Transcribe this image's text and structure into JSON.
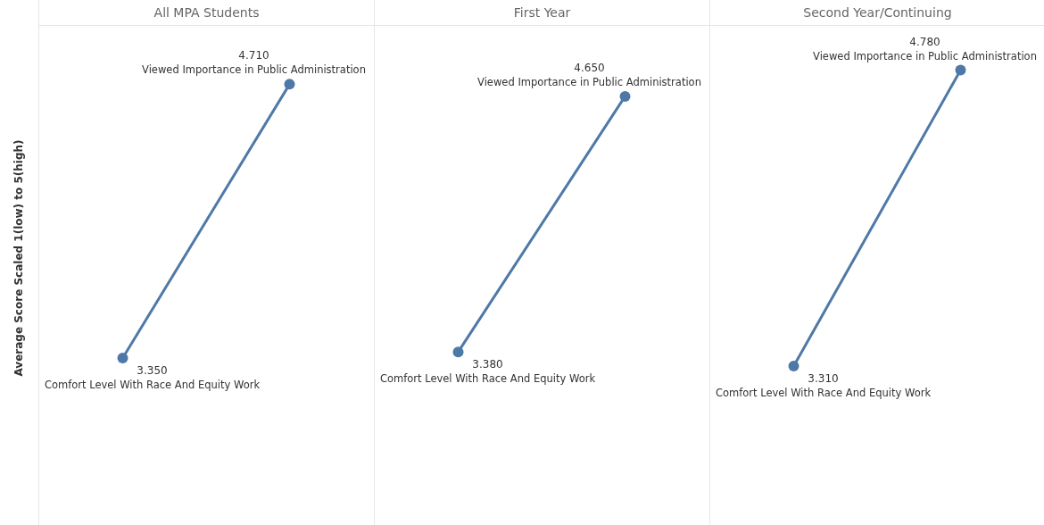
{
  "chart_data": [
    {
      "type": "line",
      "title": "All MPA Students",
      "ylabel": "Average Score Scaled 1(low) to 5(high)",
      "categories": [
        null,
        null
      ],
      "values": [
        3.35,
        4.71
      ],
      "value_labels": [
        "3.350",
        "4.710"
      ],
      "color": "#4e79a7",
      "marker": "circle",
      "ylim": [
        2.52,
        5
      ],
      "annotations": [
        "Comfort Level With Race And Equity Work",
        "Viewed Importance in Public Administration"
      ]
    },
    {
      "type": "line",
      "title": "First Year",
      "categories": [
        null,
        null
      ],
      "values": [
        3.38,
        4.65
      ],
      "value_labels": [
        "3.380",
        "4.650"
      ],
      "color": "#4e79a7",
      "marker": "circle",
      "ylim": [
        2.52,
        5
      ],
      "annotations": [
        "Comfort Level With Race And Equity Work",
        "Viewed Importance in Public Administration"
      ]
    },
    {
      "type": "line",
      "title": "Second Year/Continuing",
      "categories": [
        null,
        null
      ],
      "values": [
        3.31,
        4.78
      ],
      "value_labels": [
        "3.310",
        "4.780"
      ],
      "color": "#4e79a7",
      "marker": "circle",
      "ylim": [
        2.52,
        5
      ],
      "annotations": [
        "Comfort Level With Race And Equity Work",
        "Viewed Importance in Public Administration"
      ]
    }
  ]
}
